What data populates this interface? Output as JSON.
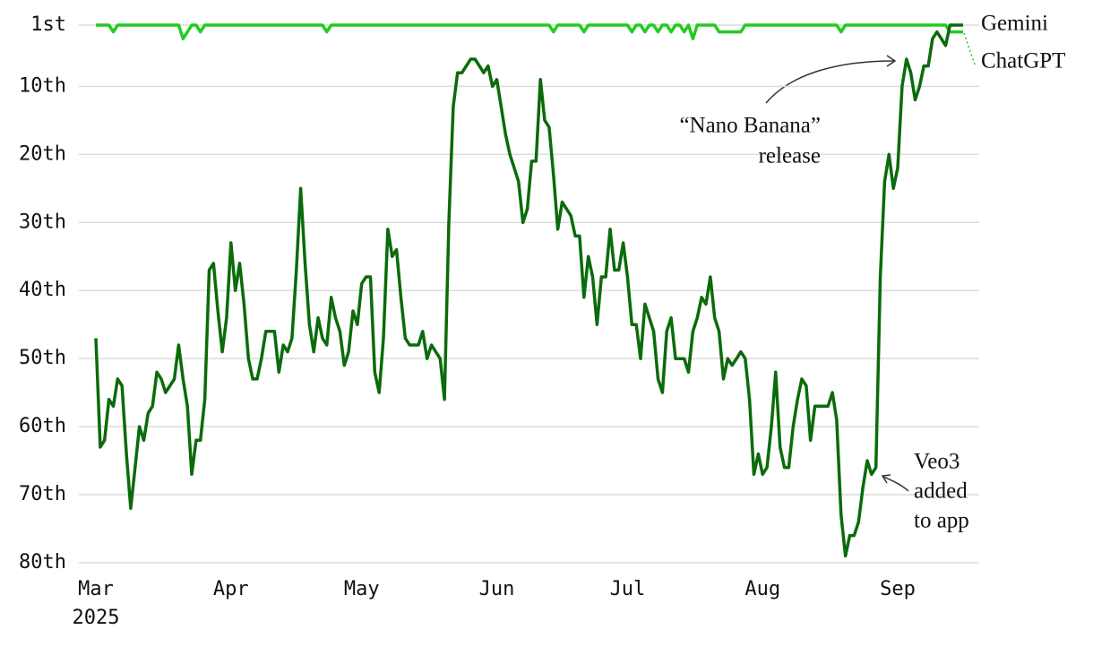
{
  "chart_data": {
    "type": "line",
    "x": [
      0,
      1,
      2,
      3,
      4,
      5,
      6,
      7,
      8,
      9,
      10,
      11,
      12,
      13,
      14,
      15,
      16,
      17,
      18,
      19,
      20,
      21,
      22,
      23,
      24,
      25,
      26,
      27,
      28,
      29,
      30,
      31,
      32,
      33,
      34,
      35,
      36,
      37,
      38,
      39,
      40,
      41,
      42,
      43,
      44,
      45,
      46,
      47,
      48,
      49,
      50,
      51,
      52,
      53,
      54,
      55,
      56,
      57,
      58,
      59,
      60,
      61,
      62,
      63,
      64,
      65,
      66,
      67,
      68,
      69,
      70,
      71,
      72,
      73,
      74,
      75,
      76,
      77,
      78,
      79,
      80,
      81,
      82,
      83,
      84,
      85,
      86,
      87,
      88,
      89,
      90,
      91,
      92,
      93,
      94,
      95,
      96,
      97,
      98,
      99,
      100,
      101,
      102,
      103,
      104,
      105,
      106,
      107,
      108,
      109,
      110,
      111,
      112,
      113,
      114,
      115,
      116,
      117,
      118,
      119,
      120,
      121,
      122,
      123,
      124,
      125,
      126,
      127,
      128,
      129,
      130,
      131,
      132,
      133,
      134,
      135,
      136,
      137,
      138,
      139,
      140,
      141,
      142,
      143,
      144,
      145,
      146,
      147,
      148,
      149,
      150,
      151,
      152,
      153,
      154,
      155,
      156,
      157,
      158,
      159,
      160,
      161,
      162,
      163,
      164,
      165,
      166,
      167,
      168,
      169,
      170,
      171,
      172,
      173,
      174,
      175,
      176,
      177,
      178,
      179,
      180,
      181,
      182,
      183,
      184,
      185,
      186,
      187,
      188,
      189,
      190,
      191,
      192,
      193,
      194,
      195,
      196,
      197,
      198,
      199
    ],
    "xlim": [
      0,
      199
    ],
    "xticks": [
      {
        "value": 0,
        "label": "Mar"
      },
      {
        "value": 31,
        "label": "Apr"
      },
      {
        "value": 61,
        "label": "May"
      },
      {
        "value": 92,
        "label": "Jun"
      },
      {
        "value": 122,
        "label": "Jul"
      },
      {
        "value": 153,
        "label": "Aug"
      },
      {
        "value": 184,
        "label": "Sep"
      }
    ],
    "x_year": "2025",
    "ylim": [
      1,
      80
    ],
    "y_inverted": true,
    "yticks": [
      {
        "value": 1,
        "label": "1st"
      },
      {
        "value": 10,
        "label": "10th"
      },
      {
        "value": 20,
        "label": "20th"
      },
      {
        "value": 30,
        "label": "30th"
      },
      {
        "value": 40,
        "label": "40th"
      },
      {
        "value": 50,
        "label": "50th"
      },
      {
        "value": 60,
        "label": "60th"
      },
      {
        "value": 70,
        "label": "70th"
      },
      {
        "value": 80,
        "label": "80th"
      }
    ],
    "grid": true,
    "series": [
      {
        "name": "ChatGPT",
        "color": "#22cc22",
        "values": [
          1,
          1,
          1,
          1,
          2,
          1,
          1,
          1,
          1,
          1,
          1,
          1,
          1,
          1,
          1,
          1,
          1,
          1,
          1,
          1,
          3,
          2,
          1,
          1,
          2,
          1,
          1,
          1,
          1,
          1,
          1,
          1,
          1,
          1,
          1,
          1,
          1,
          1,
          1,
          1,
          1,
          1,
          1,
          1,
          1,
          1,
          1,
          1,
          1,
          1,
          1,
          1,
          1,
          2,
          1,
          1,
          1,
          1,
          1,
          1,
          1,
          1,
          1,
          1,
          1,
          1,
          1,
          1,
          1,
          1,
          1,
          1,
          1,
          1,
          1,
          1,
          1,
          1,
          1,
          1,
          1,
          1,
          1,
          1,
          1,
          1,
          1,
          1,
          1,
          1,
          1,
          1,
          1,
          1,
          1,
          1,
          1,
          1,
          1,
          1,
          1,
          1,
          1,
          1,
          1,
          2,
          1,
          1,
          1,
          1,
          1,
          1,
          2,
          1,
          1,
          1,
          1,
          1,
          1,
          1,
          1,
          1,
          1,
          2,
          1,
          1,
          2,
          1,
          1,
          2,
          1,
          1,
          2,
          1,
          1,
          2,
          1,
          3,
          1,
          1,
          1,
          1,
          1,
          2,
          2,
          2,
          2,
          2,
          2,
          1,
          1,
          1,
          1,
          1,
          1,
          1,
          1,
          1,
          1,
          1,
          1,
          1,
          1,
          1,
          1,
          1,
          1,
          1,
          1,
          1,
          1,
          2,
          1,
          1,
          1,
          1,
          1,
          1,
          1,
          1,
          1,
          1,
          1,
          1,
          1,
          1,
          1,
          1,
          1,
          1,
          1,
          1,
          1,
          1,
          1,
          1,
          2,
          2,
          2,
          2
        ]
      },
      {
        "name": "Gemini",
        "color": "#0b6b0b",
        "values": [
          47,
          63,
          62,
          56,
          57,
          53,
          54,
          64,
          72,
          66,
          60,
          62,
          58,
          57,
          52,
          53,
          55,
          54,
          53,
          48,
          53,
          57,
          67,
          62,
          62,
          56,
          37,
          36,
          43,
          49,
          44,
          33,
          40,
          36,
          42,
          50,
          53,
          53,
          50,
          46,
          46,
          46,
          52,
          48,
          49,
          47,
          37,
          25,
          36,
          45,
          49,
          44,
          47,
          48,
          41,
          44,
          46,
          51,
          49,
          43,
          45,
          39,
          38,
          38,
          52,
          55,
          47,
          31,
          35,
          34,
          41,
          47,
          48,
          48,
          48,
          46,
          50,
          48,
          49,
          50,
          56,
          30,
          13,
          8,
          8,
          7,
          6,
          6,
          7,
          8,
          7,
          10,
          9,
          13,
          17,
          20,
          22,
          24,
          30,
          28,
          21,
          21,
          9,
          15,
          16,
          23,
          31,
          27,
          28,
          29,
          32,
          32,
          41,
          35,
          38,
          45,
          38,
          38,
          31,
          37,
          37,
          33,
          38,
          45,
          45,
          50,
          42,
          44,
          46,
          53,
          55,
          46,
          44,
          50,
          50,
          50,
          52,
          46,
          44,
          41,
          42,
          38,
          44,
          46,
          53,
          50,
          51,
          50,
          49,
          50,
          56,
          67,
          64,
          67,
          66,
          60,
          52,
          63,
          66,
          66,
          60,
          56,
          53,
          54,
          62,
          57,
          57,
          57,
          57,
          55,
          59,
          73,
          79,
          76,
          76,
          74,
          69,
          65,
          67,
          66,
          38,
          24,
          20,
          25,
          22,
          10,
          6,
          8,
          12,
          10,
          7,
          7,
          3,
          2,
          3,
          4,
          1,
          1,
          1,
          1
        ]
      }
    ],
    "annotations": [
      {
        "text": [
          "“Nano Banana”",
          "release"
        ]
      },
      {
        "text": [
          "Veo3",
          "added",
          "to app"
        ]
      }
    ]
  }
}
